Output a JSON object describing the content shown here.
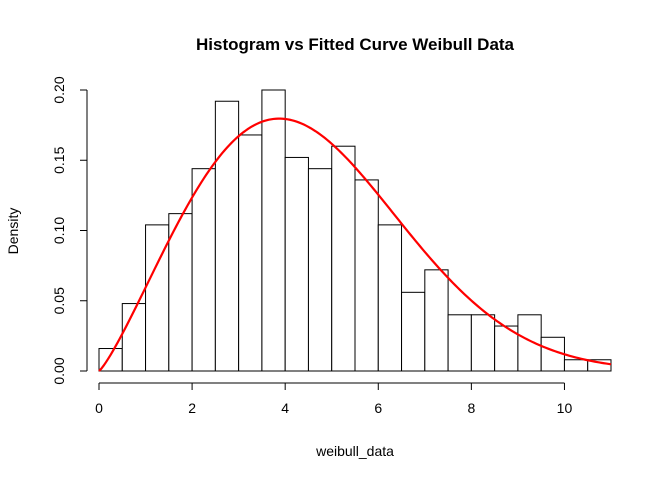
{
  "chart_data": {
    "type": "bar",
    "title": "Histogram vs Fitted Curve Weibull Data",
    "xlabel": "weibull_data",
    "ylabel": "Density",
    "xlim": [
      0,
      11
    ],
    "ylim": [
      0,
      0.2
    ],
    "x_ticks": [
      "0",
      "2",
      "4",
      "6",
      "8",
      "10"
    ],
    "y_ticks": [
      "0.00",
      "0.05",
      "0.10",
      "0.15",
      "0.20"
    ],
    "bin_width": 0.5,
    "bin_edges": [
      0,
      0.5,
      1,
      1.5,
      2,
      2.5,
      3,
      3.5,
      4,
      4.5,
      5,
      5.5,
      6,
      6.5,
      7,
      7.5,
      8,
      8.5,
      9,
      9.5,
      10,
      10.5,
      11
    ],
    "values": [
      0.016,
      0.048,
      0.104,
      0.112,
      0.144,
      0.192,
      0.168,
      0.2,
      0.152,
      0.144,
      0.16,
      0.136,
      0.104,
      0.056,
      0.072,
      0.04,
      0.04,
      0.032,
      0.04,
      0.024,
      0.008,
      0.008
    ],
    "fitted_curve": {
      "distribution": "weibull",
      "shape": 2.2,
      "scale": 5.1,
      "color": "#ff0000"
    },
    "bar_color": "#ffffff",
    "grid": false
  }
}
